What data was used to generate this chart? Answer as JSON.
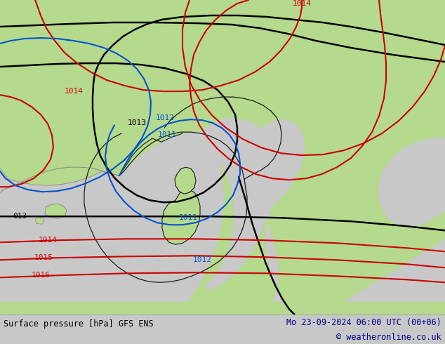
{
  "title_left": "Surface pressure [hPa] GFS ENS",
  "title_right": "Mo 23-09-2024 06:00 UTC (00+06)",
  "copyright": "© weatheronline.co.uk",
  "bg_land": "#b5d98d",
  "bg_sea": "#c8c8c8",
  "border_color_thick": "#1a1a1a",
  "border_color_thin": "#888888",
  "contour_black": "#000000",
  "contour_red": "#cc0000",
  "contour_blue": "#0055cc",
  "bottom_bar_color": "#d8d8d8",
  "text_color_left": "#000000",
  "text_color_right": "#00008b",
  "copyright_color": "#00008b",
  "figsize": [
    6.34,
    4.9
  ],
  "dpi": 100
}
